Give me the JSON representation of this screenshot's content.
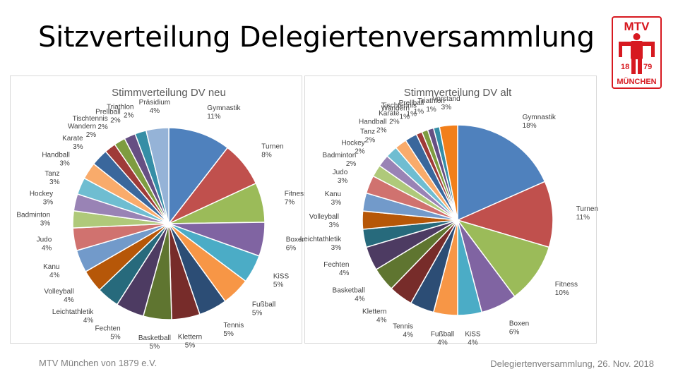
{
  "slide": {
    "title": "Sitzverteilung Delegiertenversammlung",
    "footer_left": "MTV München von 1879 e.V.",
    "footer_right": "Delegiertenversammlung, 26. Nov. 2018"
  },
  "logo": {
    "top_text": "MTV",
    "year_left": "18",
    "year_right": "79",
    "bottom_text": "MÜNCHEN",
    "color": "#d71920"
  },
  "chart_data": [
    {
      "type": "pie",
      "title": "Stimmverteilung DV neu",
      "categories": [
        "Gymnastik",
        "Turnen",
        "Fitness",
        "Boxen",
        "KiSS",
        "Fußball",
        "Tennis",
        "Klettern",
        "Basketball",
        "Fechten",
        "Leichtathletik",
        "Volleyball",
        "Kanu",
        "Judo",
        "Badminton",
        "Hockey",
        "Tanz",
        "Handball",
        "Karate",
        "Wandern",
        "Tischtennis",
        "Prellball",
        "Triathlon",
        "Präsidium"
      ],
      "values": [
        11,
        8,
        7,
        6,
        5,
        5,
        5,
        5,
        5,
        5,
        4,
        4,
        4,
        4,
        3,
        3,
        3,
        3,
        3,
        2,
        2,
        2,
        2,
        4
      ],
      "value_labels": [
        "11%",
        "8%",
        "7%",
        "6%",
        "5%",
        "5%",
        "5%",
        "5%",
        "5%",
        "5%",
        "4%",
        "4%",
        "4%",
        "4%",
        "3%",
        "3%",
        "3%",
        "3%",
        "3%",
        "2%",
        "2%",
        "2%",
        "2%",
        "4%"
      ],
      "colors": [
        "#4f81bd",
        "#c0504d",
        "#9bbb59",
        "#8064a2",
        "#4bacc6",
        "#f79646",
        "#2c4d75",
        "#772c2a",
        "#5f7530",
        "#4d3b62",
        "#276a7c",
        "#b65708",
        "#729aca",
        "#d0726f",
        "#afc97a",
        "#9983b5",
        "#6fbdd1",
        "#f9ab6b",
        "#3a679c",
        "#9f3b38",
        "#7e9c40",
        "#664f83",
        "#358ea6",
        "#95b3d7"
      ]
    },
    {
      "type": "pie",
      "title": "Stimmverteilung DV alt",
      "categories": [
        "Gymnastik",
        "Turnen",
        "Fitness",
        "Boxen",
        "KiSS",
        "Fußball",
        "Tennis",
        "Klettern",
        "Basketball",
        "Fechten",
        "Leichtathletik",
        "Volleyball",
        "Kanu",
        "Judo",
        "Badminton",
        "Hockey",
        "Tanz",
        "Handball",
        "Karate",
        "Wandern",
        "Tischtennis",
        "Prellball",
        "Triathlon",
        "Vorstand"
      ],
      "values": [
        18,
        11,
        10,
        6,
        4,
        4,
        4,
        4,
        4,
        4,
        3,
        3,
        3,
        3,
        2,
        2,
        2,
        2,
        2,
        1,
        1,
        1,
        1,
        3
      ],
      "value_labels": [
        "18%",
        "11%",
        "10%",
        "6%",
        "4%",
        "4%",
        "4%",
        "4%",
        "4%",
        "4%",
        "3%",
        "3%",
        "3%",
        "3%",
        "2%",
        "2%",
        "2%",
        "2%",
        "2%",
        "1%",
        "1%",
        "1%",
        "1%",
        "3%"
      ],
      "colors": [
        "#4f81bd",
        "#c0504d",
        "#9bbb59",
        "#8064a2",
        "#4bacc6",
        "#f79646",
        "#2c4d75",
        "#772c2a",
        "#5f7530",
        "#4d3b62",
        "#276a7c",
        "#b65708",
        "#729aca",
        "#d0726f",
        "#afc97a",
        "#9983b5",
        "#6fbdd1",
        "#f9ab6b",
        "#3a679c",
        "#9f3b38",
        "#7e9c40",
        "#664f83",
        "#358ea6",
        "#f27f1a"
      ]
    }
  ]
}
